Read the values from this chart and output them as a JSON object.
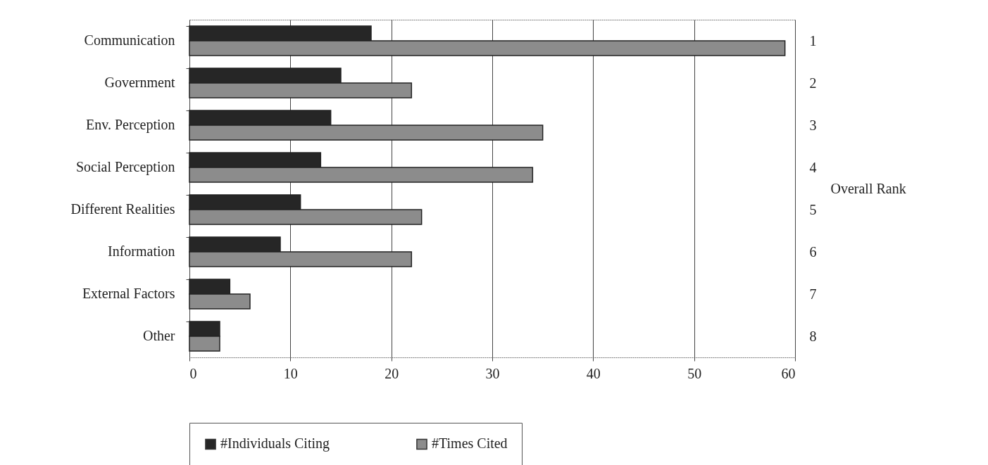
{
  "chart_data": {
    "type": "bar",
    "orientation": "horizontal",
    "categories": [
      "Communication",
      "Government",
      "Env. Perception",
      "Social Perception",
      "Different Realities",
      "Information",
      "External Factors",
      "Other"
    ],
    "y2_categories": [
      "1",
      "2",
      "3",
      "4",
      "5",
      "6",
      "7",
      "8"
    ],
    "y2label": "Overall Rank",
    "series": [
      {
        "name": "#Individuals Citing",
        "color": "#262626",
        "values": [
          18,
          15,
          14,
          13,
          11,
          9,
          4,
          3
        ]
      },
      {
        "name": "#Times Cited",
        "color": "#8c8c8c",
        "values": [
          59,
          22,
          35,
          34,
          23,
          22,
          6,
          3
        ]
      }
    ],
    "xlim": [
      0,
      60
    ],
    "xticks": [
      0,
      10,
      20,
      30,
      40,
      50,
      60
    ],
    "grid": "x",
    "legend": "bottom"
  }
}
